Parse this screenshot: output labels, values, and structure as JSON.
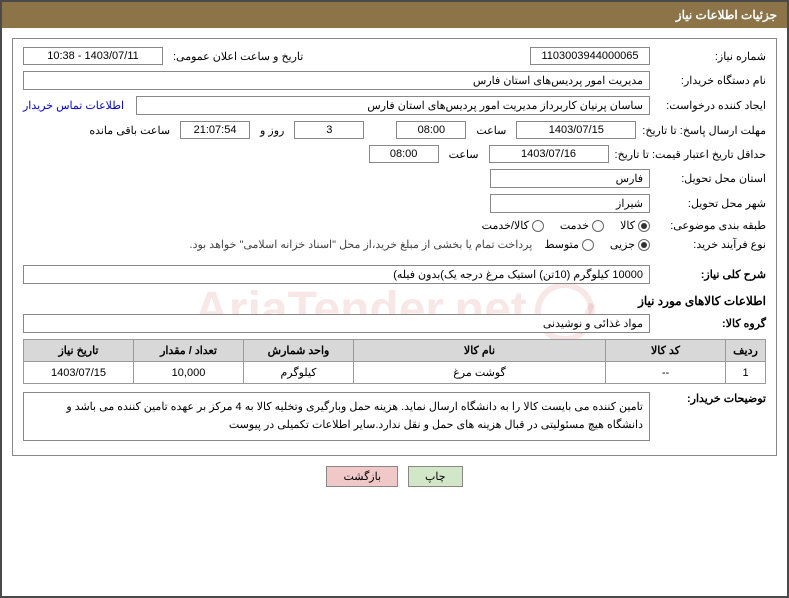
{
  "header": {
    "title": "جزئیات اطلاعات نیاز"
  },
  "labels": {
    "need_no": "شماره نیاز:",
    "announce_dt": "تاریخ و ساعت اعلان عمومی:",
    "buyer_org": "نام دستگاه خریدار:",
    "requester": "ایجاد کننده درخواست:",
    "contact_link": "اطلاعات تماس خریدار",
    "deadline": "مهلت ارسال پاسخ: تا تاریخ:",
    "hour": "ساعت",
    "days_and": "روز و",
    "remaining": "ساعت باقی مانده",
    "validity": "حداقل تاریخ اعتبار قیمت: تا تاریخ:",
    "province": "استان محل تحویل:",
    "city": "شهر محل تحویل:",
    "category": "طبقه بندی موضوعی:",
    "process": "نوع فرآیند خرید:",
    "payment_note": "پرداخت تمام یا بخشی از مبلغ خرید،از محل \"اسناد خزانه اسلامی\" خواهد بود.",
    "general_desc": "شرح کلی نیاز:",
    "items_header": "اطلاعات کالاهای مورد نیاز",
    "goods_group": "گروه کالا:",
    "buyer_notes": "توضیحات خریدار:"
  },
  "fields": {
    "need_no": "1103003944000065",
    "announce_dt": "1403/07/11 - 10:38",
    "buyer_org": "مدیریت امور پردیس‌های استان فارس",
    "requester": "ساسان پرنیان کاربرداز مدیریت امور پردیس‌های استان فارس",
    "deadline_date": "1403/07/15",
    "deadline_time": "08:00",
    "days_left": "3",
    "time_left": "21:07:54",
    "validity_date": "1403/07/16",
    "validity_time": "08:00",
    "province": "فارس",
    "city": "شیراز",
    "general_desc": "10000 کیلوگرم (10تن) استیک مرغ درجه یک)بدون فیله)",
    "goods_group": "مواد غذائی و نوشیدنی",
    "buyer_notes": "تامین کننده می بایست کالا را به دانشگاه ارسال نماید. هزینه حمل وبارگیری وتخلیه کالا به 4 مرکز بر عهده تامین کننده می باشد و دانشگاه هیچ مسئولیتی در قبال هزینه های حمل و نقل ندارد.سایر اطلاعات تکمیلی در پیوست"
  },
  "radios": {
    "category": [
      {
        "label": "کالا",
        "checked": true
      },
      {
        "label": "خدمت",
        "checked": false
      },
      {
        "label": "کالا/خدمت",
        "checked": false
      }
    ],
    "process": [
      {
        "label": "جزیی",
        "checked": true
      },
      {
        "label": "متوسط",
        "checked": false
      }
    ]
  },
  "table": {
    "headers": [
      "ردیف",
      "کد کالا",
      "نام کالا",
      "واحد شمارش",
      "تعداد / مقدار",
      "تاریخ نیاز"
    ],
    "rows": [
      [
        "1",
        "--",
        "گوشت مرغ",
        "کیلوگرم",
        "10,000",
        "1403/07/15"
      ]
    ]
  },
  "buttons": {
    "print": "چاپ",
    "back": "بازگشت"
  },
  "watermark": "AriaTender.net"
}
